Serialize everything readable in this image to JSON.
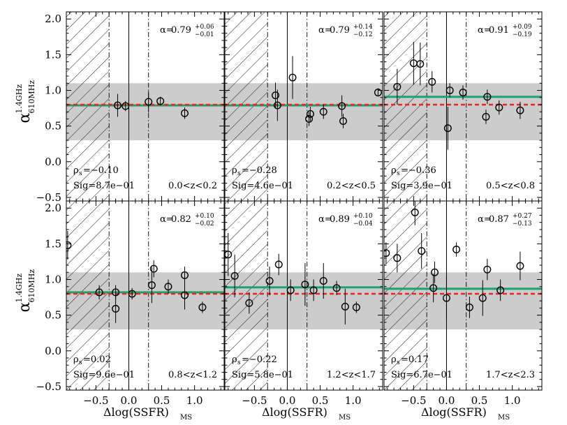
{
  "chart_data": [
    {
      "type": "scatter",
      "panel": "0.0<z<0.2",
      "alpha_prefix": "α=",
      "alpha_value": "0.79",
      "alpha_plus": "+0.06",
      "alpha_minus": "−0.01",
      "rho_prefix": "ρ",
      "rho_sub": "s",
      "rho_value": "=−0.10",
      "sig": "Sig=8.7e−01",
      "zrange": "0.0<z<0.2",
      "fit_alpha": 0.79,
      "points": [
        {
          "x": -0.17,
          "y": 0.79,
          "err": 0.16
        },
        {
          "x": -0.05,
          "y": 0.78,
          "err": 0.07
        },
        {
          "x": 0.3,
          "y": 0.84,
          "err": 0.15
        },
        {
          "x": 0.48,
          "y": 0.85,
          "err": 0.06
        },
        {
          "x": 0.85,
          "y": 0.68,
          "err": 0.08
        }
      ]
    },
    {
      "type": "scatter",
      "panel": "0.2<z<0.5",
      "alpha_prefix": "α=",
      "alpha_value": "0.79",
      "alpha_plus": "+0.14",
      "alpha_minus": "−0.12",
      "rho_prefix": "ρ",
      "rho_sub": "s",
      "rho_value": "=−0.28",
      "sig": "Sig=4.6e−01",
      "zrange": "0.2<z<0.5",
      "fit_alpha": 0.79,
      "points": [
        {
          "x": -0.18,
          "y": 0.93,
          "err": 0.18
        },
        {
          "x": -0.15,
          "y": 0.79,
          "err": 0.22
        },
        {
          "x": 0.08,
          "y": 1.18,
          "err": 0.3
        },
        {
          "x": 0.33,
          "y": 0.6,
          "err": 0.1
        },
        {
          "x": 0.35,
          "y": 0.67,
          "err": 0.1
        },
        {
          "x": 0.55,
          "y": 0.7,
          "err": 0.1
        },
        {
          "x": 0.83,
          "y": 0.78,
          "err": 0.15
        },
        {
          "x": 0.85,
          "y": 0.57,
          "err": 0.1
        },
        {
          "x": 1.38,
          "y": 0.97,
          "err": 0.06
        }
      ]
    },
    {
      "type": "scatter",
      "panel": "0.5<z<0.8",
      "alpha_prefix": "α=",
      "alpha_value": "0.91",
      "alpha_plus": "+0.09",
      "alpha_minus": "−0.19",
      "rho_prefix": "ρ",
      "rho_sub": "s",
      "rho_value": "=−0.36",
      "sig": "Sig=3.9e−01",
      "zrange": "0.5<z<0.8",
      "fit_alpha": 0.91,
      "points": [
        {
          "x": -0.75,
          "y": 1.05,
          "err": 0.25
        },
        {
          "x": -0.5,
          "y": 1.38,
          "err": 0.3
        },
        {
          "x": -0.4,
          "y": 1.37,
          "err": 0.3
        },
        {
          "x": -0.22,
          "y": 1.12,
          "err": 0.15
        },
        {
          "x": 0.02,
          "y": 0.47,
          "err": 0.3
        },
        {
          "x": 0.05,
          "y": 1.0,
          "err": 0.1
        },
        {
          "x": 0.25,
          "y": 0.97,
          "err": 0.1
        },
        {
          "x": 0.6,
          "y": 0.63,
          "err": 0.1
        },
        {
          "x": 0.62,
          "y": 0.91,
          "err": 0.1
        },
        {
          "x": 0.8,
          "y": 0.76,
          "err": 0.1
        },
        {
          "x": 1.12,
          "y": 0.72,
          "err": 0.12
        }
      ]
    },
    {
      "type": "scatter",
      "panel": "0.8<z<1.2",
      "alpha_prefix": "α=",
      "alpha_value": "0.82",
      "alpha_plus": "+0.10",
      "alpha_minus": "−0.02",
      "rho_prefix": "ρ",
      "rho_sub": "s",
      "rho_value": "=0.02",
      "sig": "Sig=9.6e−01",
      "zrange": "0.8<z<1.2",
      "fit_alpha": 0.82,
      "points": [
        {
          "x": -0.93,
          "y": 1.48,
          "err": 0.2
        },
        {
          "x": -0.45,
          "y": 0.82,
          "err": 0.1
        },
        {
          "x": -0.2,
          "y": 0.82,
          "err": 0.1
        },
        {
          "x": -0.2,
          "y": 0.59,
          "err": 0.2
        },
        {
          "x": 0.05,
          "y": 0.8,
          "err": 0.08
        },
        {
          "x": 0.35,
          "y": 0.92,
          "err": 0.25
        },
        {
          "x": 0.38,
          "y": 1.15,
          "err": 0.12
        },
        {
          "x": 0.6,
          "y": 0.9,
          "err": 0.1
        },
        {
          "x": 0.85,
          "y": 0.78,
          "err": 0.2
        },
        {
          "x": 0.85,
          "y": 1.06,
          "err": 0.12
        },
        {
          "x": 1.12,
          "y": 0.61,
          "err": 0.08
        }
      ]
    },
    {
      "type": "scatter",
      "panel": "1.2<z<1.7",
      "alpha_prefix": "α=",
      "alpha_value": "0.89",
      "alpha_plus": "+0.10",
      "alpha_minus": "−0.04",
      "rho_prefix": "ρ",
      "rho_sub": "s",
      "rho_value": "=−0.22",
      "sig": "Sig=5.8e−01",
      "zrange": "1.2<z<1.7",
      "fit_alpha": 0.89,
      "points": [
        {
          "x": -0.9,
          "y": 1.35,
          "err": 0.3
        },
        {
          "x": -0.8,
          "y": 1.05,
          "err": 0.3
        },
        {
          "x": -0.58,
          "y": 0.67,
          "err": 0.15
        },
        {
          "x": -0.27,
          "y": 0.98,
          "err": 0.2
        },
        {
          "x": -0.13,
          "y": 1.21,
          "err": 0.15
        },
        {
          "x": 0.05,
          "y": 0.85,
          "err": 0.15
        },
        {
          "x": 0.27,
          "y": 0.93,
          "err": 0.3
        },
        {
          "x": 0.4,
          "y": 0.85,
          "err": 0.15
        },
        {
          "x": 0.55,
          "y": 0.98,
          "err": 0.25
        },
        {
          "x": 0.75,
          "y": 0.88,
          "err": 0.1
        },
        {
          "x": 0.88,
          "y": 0.62,
          "err": 0.25
        },
        {
          "x": 1.05,
          "y": 0.61,
          "err": 0.08
        }
      ]
    },
    {
      "type": "scatter",
      "panel": "1.7<z<2.3",
      "alpha_prefix": "α=",
      "alpha_value": "0.87",
      "alpha_plus": "+0.27",
      "alpha_minus": "−0.13",
      "rho_prefix": "ρ",
      "rho_sub": "s",
      "rho_value": "=0.17",
      "sig": "Sig=6.7e−01",
      "zrange": "1.7<z<2.3",
      "fit_alpha": 0.87,
      "points": [
        {
          "x": -0.92,
          "y": 1.37,
          "err": 0.15
        },
        {
          "x": -0.75,
          "y": 1.3,
          "err": 0.2
        },
        {
          "x": -0.48,
          "y": 1.94,
          "err": 0.18
        },
        {
          "x": -0.38,
          "y": 1.4,
          "err": 0.25
        },
        {
          "x": -0.2,
          "y": 0.88,
          "err": 0.2
        },
        {
          "x": -0.18,
          "y": 1.1,
          "err": 0.15
        },
        {
          "x": 0.0,
          "y": 0.74,
          "err": 0.3
        },
        {
          "x": 0.15,
          "y": 1.42,
          "err": 0.1
        },
        {
          "x": 0.35,
          "y": 0.61,
          "err": 0.15
        },
        {
          "x": 0.55,
          "y": 0.74,
          "err": 0.25
        },
        {
          "x": 0.62,
          "y": 1.14,
          "err": 0.15
        },
        {
          "x": 0.82,
          "y": 0.85,
          "err": 0.15
        },
        {
          "x": 1.12,
          "y": 1.19,
          "err": 0.2
        }
      ]
    }
  ],
  "axes": {
    "xlim": [
      -0.95,
      1.45
    ],
    "ylim": [
      -0.55,
      2.1
    ],
    "xticks": [
      -0.5,
      0.0,
      0.5,
      1.0
    ],
    "xtick_labels": [
      "−0.5",
      "0.0",
      "0.5",
      "1.0"
    ],
    "yticks": [
      -0.5,
      0.0,
      0.5,
      1.0,
      1.5,
      2.0
    ],
    "ytick_labels": [
      "−0.5",
      "0.0",
      "0.5",
      "1.0",
      "1.5",
      "2.0"
    ],
    "xlabel_main": "Δlog(SSFR)",
    "xlabel_sub": "MS",
    "ylabel_main": "α",
    "ylabel_sup": "1.4GHz",
    "ylabel_sub": "610MHz"
  },
  "reference": {
    "red_dashed_alpha": 0.8,
    "grey_band": [
      0.3,
      1.1
    ],
    "hatched_x": [
      -0.95,
      -0.3
    ],
    "dashdot_x": [
      -0.3,
      0.3
    ],
    "solid_x": 0.0
  },
  "colors": {
    "fit_line": "#1aa36c",
    "reference_line": "#e8262a",
    "band": "#cccccc"
  }
}
